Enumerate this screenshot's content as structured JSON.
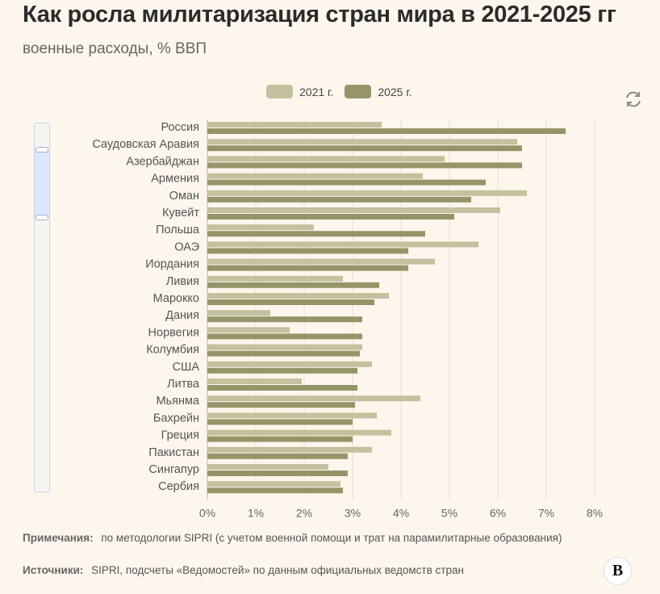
{
  "header": {
    "title": "Как росла милитаризация стран мира в 2021-2025 гг",
    "subtitle": "военные расходы, % ВВП"
  },
  "colors": {
    "y2021": "#c3c19e",
    "y2025": "#96956a",
    "grid": "#e2ddd6",
    "label": "#555555"
  },
  "chart_data": {
    "type": "bar",
    "orientation": "horizontal",
    "legend_position": "top-center",
    "grid": true,
    "xlim": [
      0,
      8
    ],
    "xticks": [
      "0%",
      "1%",
      "2%",
      "3%",
      "4%",
      "5%",
      "6%",
      "7%",
      "8%"
    ],
    "categories": [
      "Россия",
      "Саудовская Аравия",
      "Азербайджан",
      "Армения",
      "Оман",
      "Кувейт",
      "Польша",
      "ОАЭ",
      "Иордания",
      "Ливия",
      "Марокко",
      "Дания",
      "Норвегия",
      "Колумбия",
      "США",
      "Литва",
      "Мьянма",
      "Бахрейн",
      "Греция",
      "Пакистан",
      "Сингапур",
      "Сербия"
    ],
    "series": [
      {
        "name": "2021 г.",
        "values": [
          3.6,
          6.4,
          4.9,
          4.45,
          6.6,
          6.05,
          2.2,
          5.6,
          4.7,
          2.8,
          3.75,
          1.3,
          1.7,
          3.2,
          3.4,
          1.95,
          4.4,
          3.5,
          3.8,
          3.4,
          2.5,
          2.75
        ]
      },
      {
        "name": "2025 г.",
        "values": [
          7.4,
          6.5,
          6.5,
          5.75,
          5.45,
          5.1,
          4.5,
          4.15,
          4.15,
          3.55,
          3.45,
          3.2,
          3.2,
          3.15,
          3.1,
          3.1,
          3.05,
          3.0,
          3.0,
          2.9,
          2.9,
          2.8
        ]
      }
    ]
  },
  "footer": {
    "notes_label": "Примечания:",
    "notes_text": "по методологии SIPRI (с учетом военной помощи и трат на парамилитарные образования)",
    "sources_label": "Источники:",
    "sources_text": "SIPRI, подсчеты «Ведомостей» по данным официальных ведомств стран",
    "logo": "В"
  },
  "icons": {
    "refresh": "refresh-icon",
    "logo": "vedomosti-logo"
  }
}
